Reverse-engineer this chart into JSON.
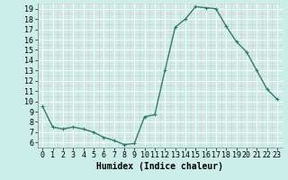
{
  "x": [
    0,
    1,
    2,
    3,
    4,
    5,
    6,
    7,
    8,
    9,
    10,
    11,
    12,
    13,
    14,
    15,
    16,
    17,
    18,
    19,
    20,
    21,
    22,
    23
  ],
  "y": [
    9.5,
    7.5,
    7.3,
    7.5,
    7.3,
    7.0,
    6.5,
    6.2,
    5.8,
    5.9,
    8.5,
    8.7,
    13.0,
    17.2,
    18.0,
    19.2,
    19.1,
    19.0,
    17.3,
    15.8,
    14.8,
    13.0,
    11.2,
    10.2
  ],
  "line_color": "#2e7d6e",
  "bg_color": "#cceee8",
  "grid_color": "#ffffff",
  "grid_minor_color": "#e8c8c8",
  "xlabel": "Humidex (Indice chaleur)",
  "xlabel_fontsize": 7,
  "tick_fontsize": 6,
  "xlim": [
    -0.5,
    23.5
  ],
  "ylim": [
    5.5,
    19.5
  ],
  "yticks": [
    6,
    7,
    8,
    9,
    10,
    11,
    12,
    13,
    14,
    15,
    16,
    17,
    18,
    19
  ],
  "xticks": [
    0,
    1,
    2,
    3,
    4,
    5,
    6,
    7,
    8,
    9,
    10,
    11,
    12,
    13,
    14,
    15,
    16,
    17,
    18,
    19,
    20,
    21,
    22,
    23
  ],
  "marker": "P",
  "marker_size": 2.5,
  "line_width": 1.0
}
